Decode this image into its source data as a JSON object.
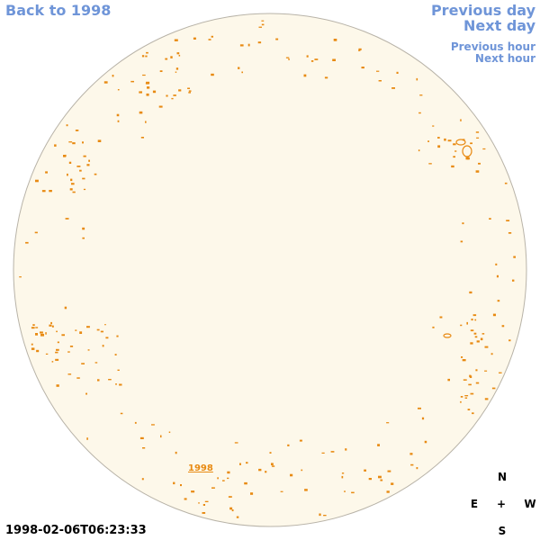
{
  "navigation": {
    "back": "Back to 1998",
    "previous_day": "Previous day",
    "next_day": "Next day",
    "previous_hour": "Previous hour",
    "next_hour": "Next hour"
  },
  "disk_label": "1998",
  "timestamp": "1998-02-06T06:23:33",
  "compass": {
    "north": "N",
    "east": "E",
    "center": "+",
    "west": "W",
    "south": "S"
  }
}
